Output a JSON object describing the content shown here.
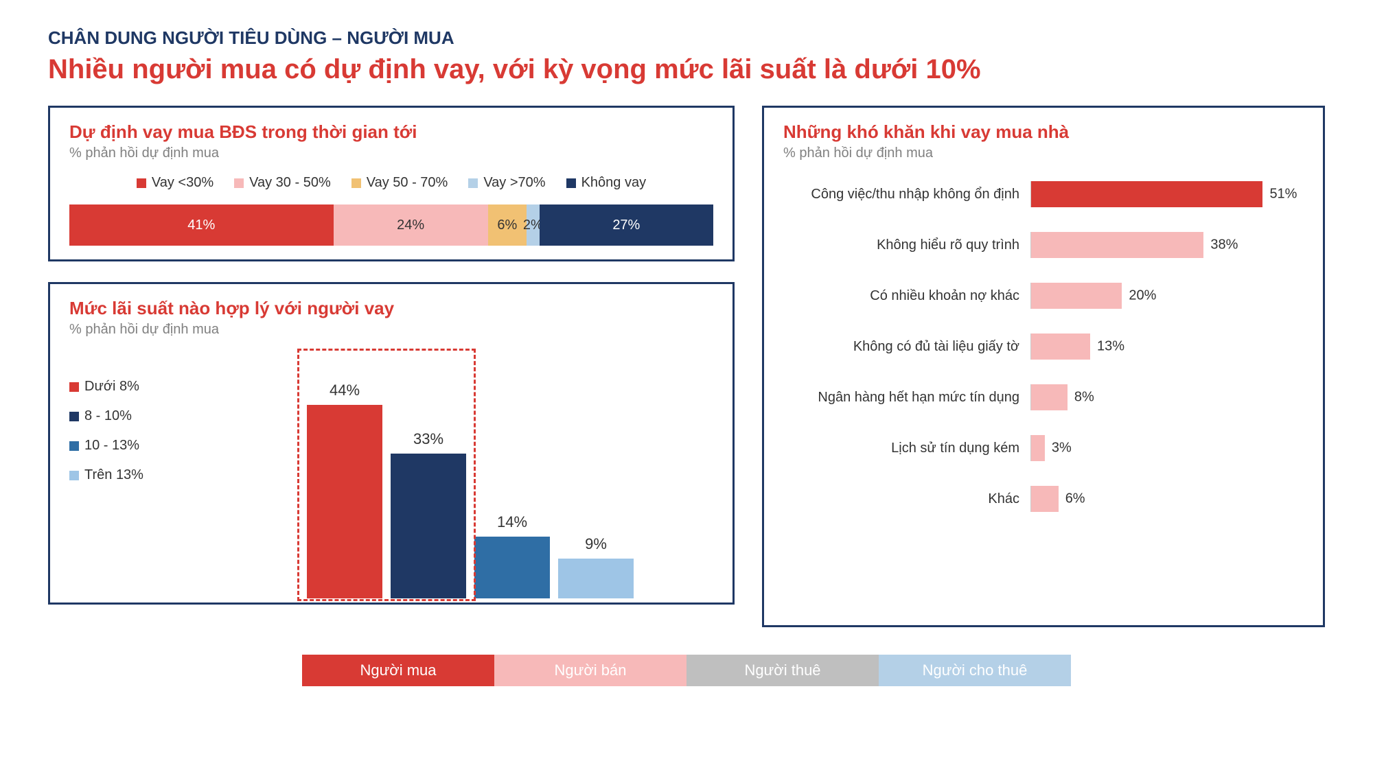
{
  "header": {
    "small": "CHÂN DUNG NGƯỜI TIÊU DÙNG – NGƯỜI MUA",
    "large": "Nhiều người mua có dự định vay, với kỳ vọng mức lãi suất là dưới 10%"
  },
  "colors": {
    "red": "#d83a34",
    "pink": "#f7b9b9",
    "gold": "#f1c173",
    "lightblue": "#b4d0e7",
    "navy": "#1f3864",
    "midblue": "#2f6ea5",
    "skyblue": "#9ec5e6",
    "grey_text": "#808080",
    "white": "#ffffff",
    "tab_grey": "#bfbfbf"
  },
  "panel1": {
    "title": "Dự định vay mua BĐS trong thời gian tới",
    "sub": "% phản hồi dự định mua",
    "type": "stacked-bar",
    "segments": [
      {
        "label": "Vay <30%",
        "value": 41,
        "color": "#d83a34",
        "text_color": "#ffffff"
      },
      {
        "label": "Vay 30 - 50%",
        "value": 24,
        "color": "#f7b9b9",
        "text_color": "#333333"
      },
      {
        "label": "Vay 50 - 70%",
        "value": 6,
        "color": "#f1c173",
        "text_color": "#333333"
      },
      {
        "label": "Vay >70%",
        "value": 2,
        "color": "#b4d0e7",
        "text_color": "#333333"
      },
      {
        "label": "Không vay",
        "value": 27,
        "color": "#1f3864",
        "text_color": "#ffffff"
      }
    ]
  },
  "panel2": {
    "title": "Mức lãi suất nào hợp lý với người vay",
    "sub": "% phản hồi dự định mua",
    "type": "bar",
    "ymax": 50,
    "bars": [
      {
        "label": "Dưới 8%",
        "value": 44,
        "color": "#d83a34"
      },
      {
        "label": "8 - 10%",
        "value": 33,
        "color": "#1f3864"
      },
      {
        "label": "10 - 13%",
        "value": 14,
        "color": "#2f6ea5"
      },
      {
        "label": "Trên 13%",
        "value": 9,
        "color": "#9ec5e6"
      }
    ],
    "highlight": {
      "from_bar": 0,
      "to_bar": 1
    }
  },
  "panel3": {
    "title": "Những khó khăn khi vay mua nhà",
    "sub": "% phản hồi dự định mua",
    "type": "hbar",
    "xmax": 60,
    "rows": [
      {
        "label": "Công việc/thu nhập không ổn định",
        "value": 51,
        "color": "#d83a34"
      },
      {
        "label": "Không hiểu rõ quy trình",
        "value": 38,
        "color": "#f7b9b9"
      },
      {
        "label": "Có nhiều khoản nợ khác",
        "value": 20,
        "color": "#f7b9b9"
      },
      {
        "label": "Không có đủ tài liệu giấy tờ",
        "value": 13,
        "color": "#f7b9b9"
      },
      {
        "label": "Ngân hàng hết hạn mức tín dụng",
        "value": 8,
        "color": "#f7b9b9"
      },
      {
        "label": "Lịch sử tín dụng kém",
        "value": 3,
        "color": "#f7b9b9"
      },
      {
        "label": "Khác",
        "value": 6,
        "color": "#f7b9b9"
      }
    ]
  },
  "tabs": [
    {
      "label": "Người mua",
      "bg": "#d83a34",
      "text": "#ffffff",
      "active": true
    },
    {
      "label": "Người bán",
      "bg": "#f7b9b9",
      "text": "#ffffff",
      "active": false
    },
    {
      "label": "Người thuê",
      "bg": "#bfbfbf",
      "text": "#ffffff",
      "active": false
    },
    {
      "label": "Người cho thuê",
      "bg": "#b4d0e7",
      "text": "#ffffff",
      "active": false
    }
  ]
}
